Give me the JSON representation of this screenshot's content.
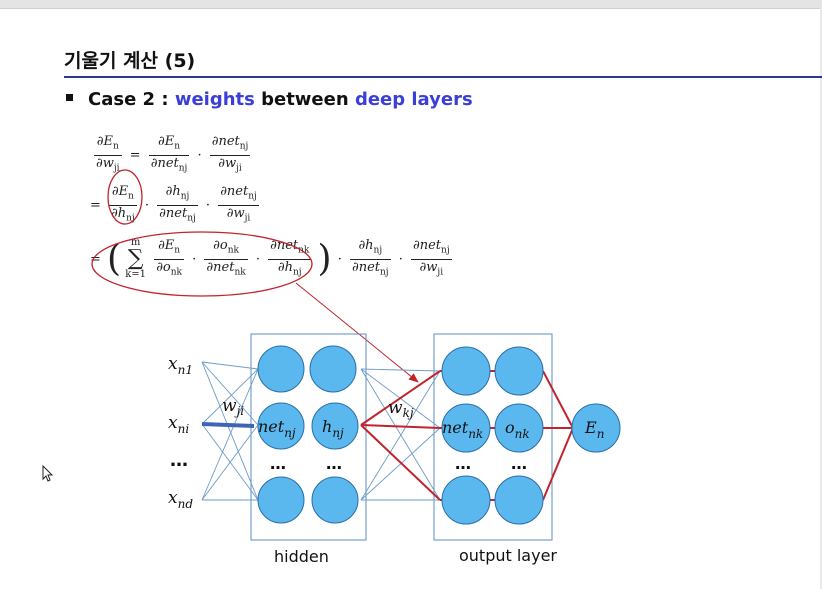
{
  "slide": {
    "title": "기울기 계산 (5)",
    "case_prefix": "Case 2 : ",
    "case_blue1": "weights",
    "case_mid": " between ",
    "case_blue2": "deep layers"
  },
  "equations": {
    "line1": {
      "lhs_num": "∂E",
      "lhs_num_sub": "n",
      "lhs_den": "∂w",
      "lhs_den_sub": "ji",
      "eq": "=",
      "t1_num": "∂E",
      "t1_num_sub": "n",
      "t1_den": "∂net",
      "t1_den_sub": "nj",
      "dot": "·",
      "t2_num": "∂net",
      "t2_num_sub": "nj",
      "t2_den": "∂w",
      "t2_den_sub": "ji"
    },
    "line2": {
      "eq": "=",
      "t1_num": "∂E",
      "t1_num_sub": "n",
      "t1_den": "∂h",
      "t1_den_sub": "nj",
      "dot": "·",
      "t2_num": "∂h",
      "t2_num_sub": "nj",
      "t2_den": "∂net",
      "t2_den_sub": "nj",
      "t3_num": "∂net",
      "t3_num_sub": "nj",
      "t3_den": "∂w",
      "t3_den_sub": "ji"
    },
    "line3": {
      "eq": "=",
      "lparen": "(",
      "rparen": ")",
      "sum_upper": "m",
      "sum_sign": "∑",
      "sum_lower": "k=1",
      "dot": "·",
      "a_num": "∂E",
      "a_num_sub": "n",
      "a_den": "∂o",
      "a_den_sub": "nk",
      "b_num": "∂o",
      "b_num_sub": "nk",
      "b_den": "∂net",
      "b_den_sub": "nk",
      "c_num": "∂net",
      "c_num_sub": "nk",
      "c_den": "∂h",
      "c_den_sub": "nj",
      "d_num": "∂h",
      "d_num_sub": "nj",
      "d_den": "∂net",
      "d_den_sub": "nj",
      "e_num": "∂net",
      "e_num_sub": "nj",
      "e_den": "∂w",
      "e_den_sub": "ji"
    }
  },
  "diagram": {
    "inputs": [
      {
        "base": "x",
        "sub": "n1"
      },
      {
        "base": "x",
        "sub": "ni"
      },
      {
        "base": "x",
        "sub": "nd"
      }
    ],
    "input_ellipsis": "…",
    "weight_ji": {
      "base": "w",
      "sub": "ji"
    },
    "weight_kj": {
      "base": "w",
      "sub": "kj"
    },
    "hidden_net": {
      "base": "net",
      "sub": "nj"
    },
    "hidden_h": {
      "base": "h",
      "sub": "nj"
    },
    "output_net": {
      "base": "net",
      "sub": "nk"
    },
    "output_o": {
      "base": "o",
      "sub": "nk"
    },
    "error": {
      "base": "E",
      "sub": "n"
    },
    "node_ellipsis": "…",
    "hidden_label": "hidden",
    "output_label": "output layer"
  },
  "colors": {
    "node_fill": "#5bb8ef",
    "node_stroke": "#2a6ea8",
    "thin_line": "#6d9cc7",
    "red": "#c0242c",
    "thick_blue": "#3f66b6",
    "title_rule": "#2b3a8f",
    "accent_text": "#3b3fd8"
  }
}
